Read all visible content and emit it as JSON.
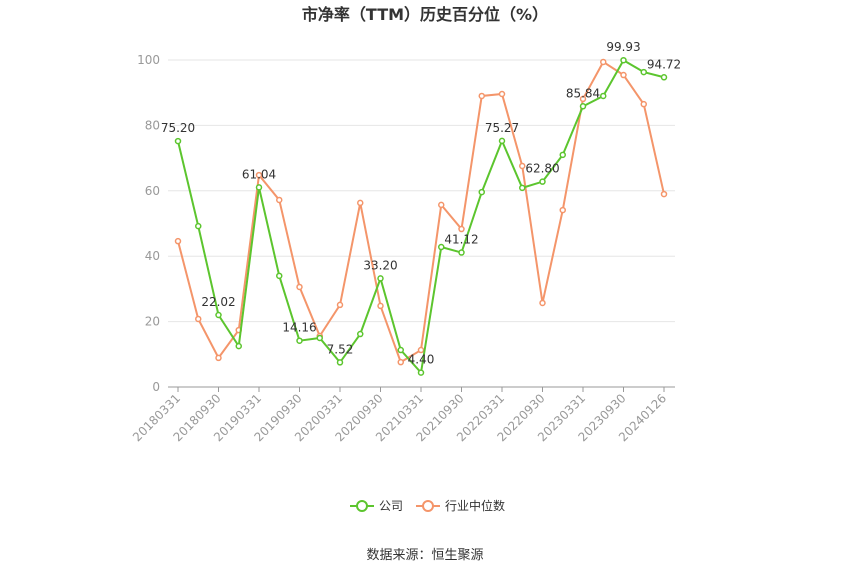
{
  "chart_data": {
    "type": "line",
    "title": "市净率（TTM）历史百分位（%）",
    "categories": [
      "20180331",
      null,
      "20180930",
      null,
      "20190331",
      null,
      "20190930",
      null,
      "20200331",
      null,
      "20200930",
      null,
      "20210331",
      null,
      "20210930",
      null,
      "20220331",
      null,
      "20220930",
      null,
      "20230331",
      null,
      "20230930",
      null,
      "20240126"
    ],
    "series": [
      {
        "name": "公司",
        "color": "#5cc52e",
        "values": [
          75.2,
          49.2,
          22.02,
          12.5,
          61.04,
          34.0,
          14.16,
          15.0,
          7.52,
          16.2,
          33.2,
          11.3,
          4.4,
          42.8,
          41.12,
          59.6,
          75.27,
          60.9,
          62.8,
          71.0,
          85.84,
          89.0,
          99.93,
          96.3,
          94.72
        ],
        "value_labels": [
          "75.20",
          null,
          "22.02",
          null,
          "61.04",
          null,
          "14.16",
          null,
          "7.52",
          null,
          "33.20",
          null,
          "4.40",
          null,
          "41.12",
          null,
          "75.27",
          null,
          "62.80",
          null,
          "85.84",
          null,
          "99.93",
          null,
          "94.72"
        ]
      },
      {
        "name": "行业中位数",
        "color": "#f4956a",
        "values": [
          44.6,
          20.8,
          8.9,
          17.4,
          64.8,
          57.2,
          30.6,
          15.6,
          25.1,
          56.3,
          24.8,
          7.6,
          11.3,
          55.7,
          48.3,
          89.0,
          89.6,
          67.6,
          25.7,
          54.1,
          88.1,
          99.4,
          95.4,
          86.5,
          59.0
        ]
      }
    ],
    "ylim": [
      0,
      100
    ],
    "yticks": [
      0,
      20,
      40,
      60,
      80,
      100
    ],
    "grid": true,
    "source": "数据来源：恒生聚源"
  }
}
